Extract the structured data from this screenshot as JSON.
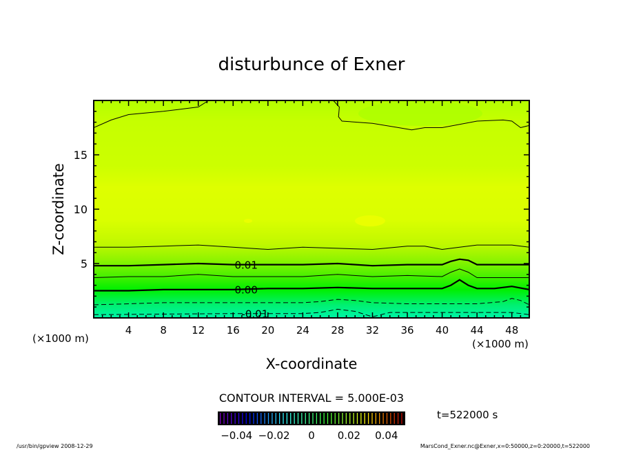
{
  "chart_data": {
    "type": "contour",
    "title": "disturbunce of Exner",
    "xlabel": "X-coordinate",
    "ylabel": "Z-coordinate",
    "x_unit_label": "(×1000 m)",
    "y_unit_label": "(×1000 m)",
    "xlim": [
      0,
      50
    ],
    "ylim": [
      0,
      20
    ],
    "xticks": [
      4,
      8,
      12,
      16,
      20,
      24,
      28,
      32,
      36,
      40,
      44,
      48
    ],
    "xtick_labels": [
      "4",
      "8",
      "12",
      "16",
      "20",
      "24",
      "28",
      "32",
      "36",
      "40",
      "44",
      "48"
    ],
    "yticks": [
      5,
      10,
      15
    ],
    "ytick_labels": [
      "5",
      "10",
      "15"
    ],
    "contour_interval_label": "CONTOUR INTERVAL = 5.000E-03",
    "time_label": "t=522000 s",
    "colorbar": {
      "range": [
        -0.05,
        0.05
      ],
      "ticks": [
        -0.04,
        -0.02,
        0,
        0.02,
        0.04
      ],
      "tick_labels": [
        "-0.04",
        "-0.02",
        "0",
        "0.02",
        "0.04"
      ]
    },
    "contours": [
      {
        "level": 0.015,
        "style": "thin",
        "label": "",
        "points": [
          [
            0,
            6.5
          ],
          [
            4,
            6.5
          ],
          [
            8,
            6.6
          ],
          [
            12,
            6.7
          ],
          [
            16,
            6.5
          ],
          [
            20,
            6.3
          ],
          [
            24,
            6.5
          ],
          [
            28,
            6.4
          ],
          [
            32,
            6.3
          ],
          [
            36,
            6.6
          ],
          [
            38,
            6.6
          ],
          [
            40,
            6.3
          ],
          [
            42,
            6.5
          ],
          [
            44,
            6.7
          ],
          [
            48,
            6.7
          ],
          [
            50,
            6.5
          ]
        ]
      },
      {
        "level": 0.01,
        "style": "thick",
        "label": "0.01",
        "label_x": 17.5,
        "points": [
          [
            0,
            4.8
          ],
          [
            4,
            4.8
          ],
          [
            8,
            4.9
          ],
          [
            12,
            5.0
          ],
          [
            16,
            4.9
          ],
          [
            20,
            4.9
          ],
          [
            24,
            4.9
          ],
          [
            28,
            5.0
          ],
          [
            32,
            4.8
          ],
          [
            36,
            4.9
          ],
          [
            40,
            4.9
          ],
          [
            41,
            5.2
          ],
          [
            42,
            5.4
          ],
          [
            43,
            5.3
          ],
          [
            44,
            4.9
          ],
          [
            48,
            4.9
          ],
          [
            50,
            4.9
          ]
        ]
      },
      {
        "level": 0.005,
        "style": "thin",
        "label": "",
        "points": [
          [
            0,
            3.7
          ],
          [
            4,
            3.8
          ],
          [
            8,
            3.8
          ],
          [
            12,
            4.0
          ],
          [
            16,
            3.8
          ],
          [
            20,
            3.8
          ],
          [
            24,
            3.8
          ],
          [
            28,
            4.0
          ],
          [
            32,
            3.8
          ],
          [
            36,
            3.9
          ],
          [
            40,
            3.8
          ],
          [
            41,
            4.2
          ],
          [
            42,
            4.5
          ],
          [
            43,
            4.2
          ],
          [
            44,
            3.7
          ],
          [
            48,
            3.7
          ],
          [
            50,
            3.7
          ]
        ]
      },
      {
        "level": 0.0,
        "style": "thick",
        "label": "0.00",
        "label_x": 17.5,
        "points": [
          [
            0,
            2.5
          ],
          [
            4,
            2.5
          ],
          [
            8,
            2.6
          ],
          [
            12,
            2.6
          ],
          [
            16,
            2.6
          ],
          [
            20,
            2.7
          ],
          [
            24,
            2.7
          ],
          [
            28,
            2.8
          ],
          [
            32,
            2.7
          ],
          [
            36,
            2.7
          ],
          [
            40,
            2.7
          ],
          [
            41,
            3.0
          ],
          [
            42,
            3.5
          ],
          [
            43,
            3.0
          ],
          [
            44,
            2.7
          ],
          [
            46,
            2.7
          ],
          [
            48,
            2.9
          ],
          [
            50,
            2.6
          ]
        ]
      },
      {
        "level": -0.005,
        "style": "dashed",
        "label": "",
        "points": [
          [
            0,
            1.2
          ],
          [
            4,
            1.3
          ],
          [
            8,
            1.4
          ],
          [
            12,
            1.4
          ],
          [
            16,
            1.4
          ],
          [
            20,
            1.4
          ],
          [
            24,
            1.4
          ],
          [
            26,
            1.5
          ],
          [
            28,
            1.7
          ],
          [
            30,
            1.6
          ],
          [
            32,
            1.4
          ],
          [
            36,
            1.3
          ],
          [
            40,
            1.3
          ],
          [
            44,
            1.3
          ],
          [
            47,
            1.5
          ],
          [
            48,
            1.8
          ],
          [
            49,
            1.6
          ],
          [
            50,
            1.2
          ]
        ]
      },
      {
        "level": -0.01,
        "style": "dashed",
        "label": "-0.01",
        "label_x": 18.5,
        "points": [
          [
            0,
            0.3
          ],
          [
            8,
            0.35
          ],
          [
            16,
            0.4
          ],
          [
            24,
            0.4
          ],
          [
            26,
            0.5
          ],
          [
            28,
            0.8
          ],
          [
            30,
            0.6
          ],
          [
            32,
            0.1
          ],
          [
            34,
            0.5
          ],
          [
            40,
            0.5
          ],
          [
            48,
            0.5
          ],
          [
            50,
            0.3
          ]
        ]
      },
      {
        "level": 0.02,
        "style": "thin",
        "label": "",
        "points": [
          [
            0,
            17.5
          ],
          [
            2,
            18.2
          ],
          [
            4,
            18.7
          ],
          [
            8,
            19.0
          ],
          [
            12,
            19.4
          ],
          [
            13.2,
            20
          ]
        ]
      },
      {
        "level": 0.02,
        "style": "thin",
        "label": "",
        "points": [
          [
            27.5,
            20
          ],
          [
            28.2,
            19.4
          ],
          [
            28.1,
            18.5
          ],
          [
            28.5,
            18.1
          ],
          [
            32,
            17.9
          ],
          [
            35,
            17.5
          ],
          [
            36.5,
            17.3
          ],
          [
            38,
            17.5
          ],
          [
            40,
            17.5
          ],
          [
            42,
            17.8
          ],
          [
            44,
            18.1
          ],
          [
            47,
            18.2
          ],
          [
            48,
            18.1
          ],
          [
            49,
            17.5
          ],
          [
            50,
            17.7
          ]
        ]
      }
    ]
  },
  "footer": {
    "left": "/usr/bin/gpview   2008-12-29",
    "right": "MarsCond_Exner.nc@Exner,x=0:50000,z=0:20000,t=522000"
  },
  "colors": {
    "field_bottom": "#00f0a0",
    "field_low": "#00f000",
    "field_mid": "#a0f000",
    "field_high": "#e0ff00",
    "field_top": "#b4ff00"
  }
}
